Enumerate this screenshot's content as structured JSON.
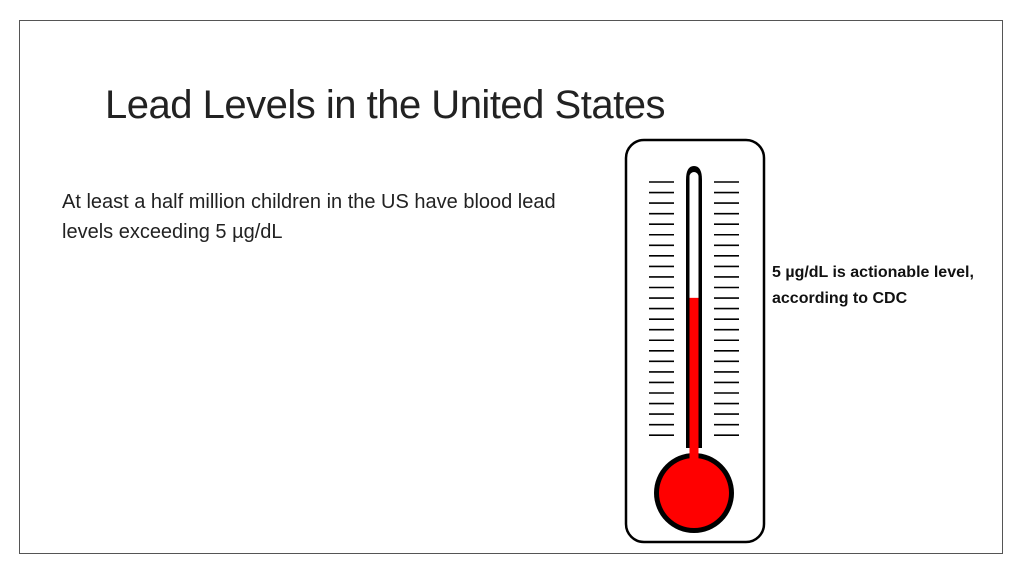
{
  "slide": {
    "title": "Lead Levels in the United States",
    "body_text": "At least a half million children in the US have blood lead levels exceeding 5 µg/dL",
    "callout": "5 µg/dL is actionable level, according to CDC"
  },
  "thermometer": {
    "icon": "thermometer-icon",
    "fill_fraction": 0.56,
    "colors": {
      "mercury": "#ff0000",
      "outline": "#000000",
      "frame": "#ffffff"
    }
  }
}
